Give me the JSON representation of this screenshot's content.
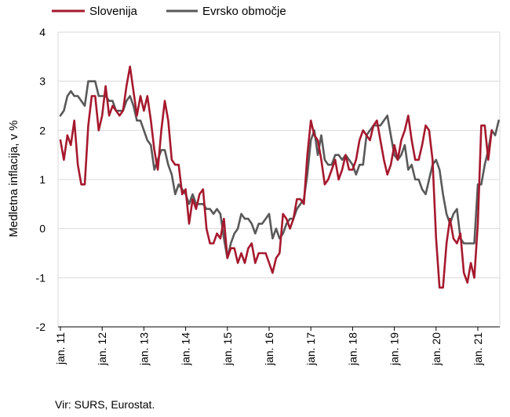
{
  "chart_data": {
    "type": "line",
    "title": "",
    "xlabel": "",
    "ylabel": "Medletna inflacija, v %",
    "ylim": [
      -2,
      4
    ],
    "yticks": [
      -2,
      -1,
      0,
      1,
      2,
      3,
      4
    ],
    "x_start": "2011-01",
    "xtick_labels": [
      "jan. 11",
      "jan. 12",
      "jan. 13",
      "jan. 14",
      "jan. 15",
      "jan. 16",
      "jan. 17",
      "jan. 18",
      "jan. 19",
      "jan. 20",
      "jan. 21"
    ],
    "grid": true,
    "legend_position": "top-left",
    "source": "Vir: SURS, Eurostat.",
    "series": [
      {
        "name": "Slovenija",
        "color": "#A6192E",
        "values": [
          1.8,
          1.4,
          1.9,
          1.7,
          2.2,
          1.3,
          0.9,
          0.9,
          2.1,
          2.7,
          2.7,
          2.0,
          2.3,
          2.9,
          2.3,
          2.5,
          2.4,
          2.3,
          2.4,
          2.9,
          3.3,
          2.8,
          2.3,
          2.7,
          2.4,
          2.7,
          2.2,
          1.6,
          1.2,
          2.0,
          2.6,
          2.2,
          1.4,
          1.3,
          1.3,
          0.7,
          0.8,
          0.1,
          0.6,
          0.4,
          0.7,
          0.8,
          0.0,
          -0.3,
          -0.3,
          -0.1,
          -0.2,
          0.2,
          -0.6,
          -0.4,
          -0.4,
          -0.7,
          -0.5,
          -0.7,
          -0.4,
          -0.3,
          -0.7,
          -0.5,
          -0.5,
          -0.5,
          -0.7,
          -0.9,
          -0.6,
          -0.5,
          0.3,
          0.2,
          0.0,
          0.2,
          0.6,
          0.6,
          0.5,
          1.5,
          2.2,
          1.9,
          1.8,
          1.4,
          0.9,
          1.0,
          1.2,
          1.4,
          1.0,
          1.2,
          1.5,
          1.2,
          1.2,
          1.4,
          1.8,
          2.0,
          1.9,
          1.8,
          2.1,
          2.2,
          1.8,
          1.4,
          1.1,
          1.3,
          1.7,
          1.4,
          1.8,
          2.0,
          2.3,
          1.8,
          1.4,
          1.4,
          1.7,
          2.1,
          2.0,
          1.4,
          -0.2,
          -1.2,
          -1.2,
          -0.3,
          0.2,
          -0.2,
          -0.3,
          -0.1,
          -0.9,
          -1.1,
          -0.7,
          -1.0,
          0.1,
          2.1,
          2.1,
          1.4,
          2.0
        ]
      },
      {
        "name": "Evrsko območje",
        "color": "#595959",
        "values": [
          2.3,
          2.4,
          2.7,
          2.8,
          2.7,
          2.7,
          2.6,
          2.5,
          3.0,
          3.0,
          3.0,
          2.7,
          2.7,
          2.7,
          2.6,
          2.6,
          2.4,
          2.4,
          2.4,
          2.6,
          2.7,
          2.5,
          2.2,
          2.2,
          2.0,
          1.8,
          1.7,
          1.2,
          1.4,
          1.6,
          1.6,
          1.3,
          1.1,
          0.7,
          0.9,
          0.8,
          0.7,
          0.5,
          0.7,
          0.5,
          0.5,
          0.5,
          0.4,
          0.4,
          0.3,
          0.4,
          0.3,
          -0.2,
          -0.6,
          -0.3,
          -0.1,
          0.0,
          0.3,
          0.2,
          0.2,
          0.1,
          -0.1,
          0.1,
          0.1,
          0.2,
          0.3,
          -0.2,
          0.0,
          -0.2,
          -0.1,
          0.1,
          0.2,
          0.2,
          0.4,
          0.5,
          0.6,
          1.1,
          1.8,
          2.0,
          1.5,
          1.9,
          1.4,
          1.3,
          1.3,
          1.5,
          1.5,
          1.4,
          1.5,
          1.4,
          1.3,
          1.1,
          1.3,
          1.3,
          1.9,
          2.0,
          2.1,
          2.1,
          2.1,
          2.2,
          2.3,
          1.9,
          1.5,
          1.4,
          1.5,
          1.7,
          1.2,
          1.3,
          1.0,
          1.0,
          0.8,
          0.7,
          1.0,
          1.3,
          1.4,
          1.2,
          0.7,
          0.3,
          0.1,
          0.3,
          0.4,
          -0.2,
          -0.3,
          -0.3,
          -0.3,
          -0.3,
          0.9,
          0.9,
          1.3,
          1.6,
          2.0,
          1.9,
          2.2
        ]
      }
    ]
  }
}
